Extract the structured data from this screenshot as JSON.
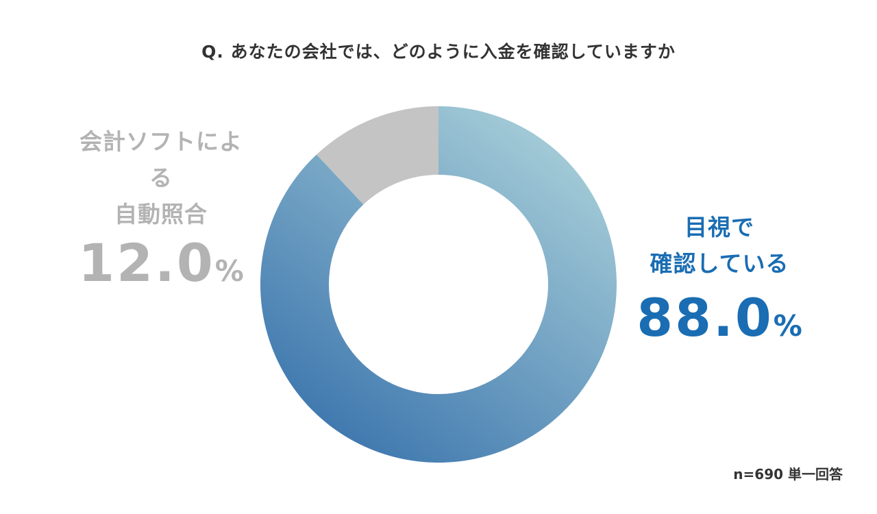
{
  "chart_data": {
    "type": "pie",
    "variant": "donut",
    "title": "Q. あなたの会社では、どのように入金を確認していますか",
    "slices": [
      {
        "label_lines": [
          "目視で",
          "確認している"
        ],
        "value": 88.0,
        "value_text": "88.0",
        "unit": "%",
        "color": "#2e6aa8",
        "color_light": "#a6cdd8",
        "label_color": "#1a6db3"
      },
      {
        "label_lines": [
          "会計ソフトによる",
          "自動照合"
        ],
        "value": 12.0,
        "value_text": "12.0",
        "unit": "%",
        "color": "#c4c4c4",
        "label_color": "#b3b3b3"
      }
    ],
    "start_angle": "12 o'clock",
    "direction": "clockwise",
    "legend": "none",
    "note": "n=690 単一回答"
  }
}
